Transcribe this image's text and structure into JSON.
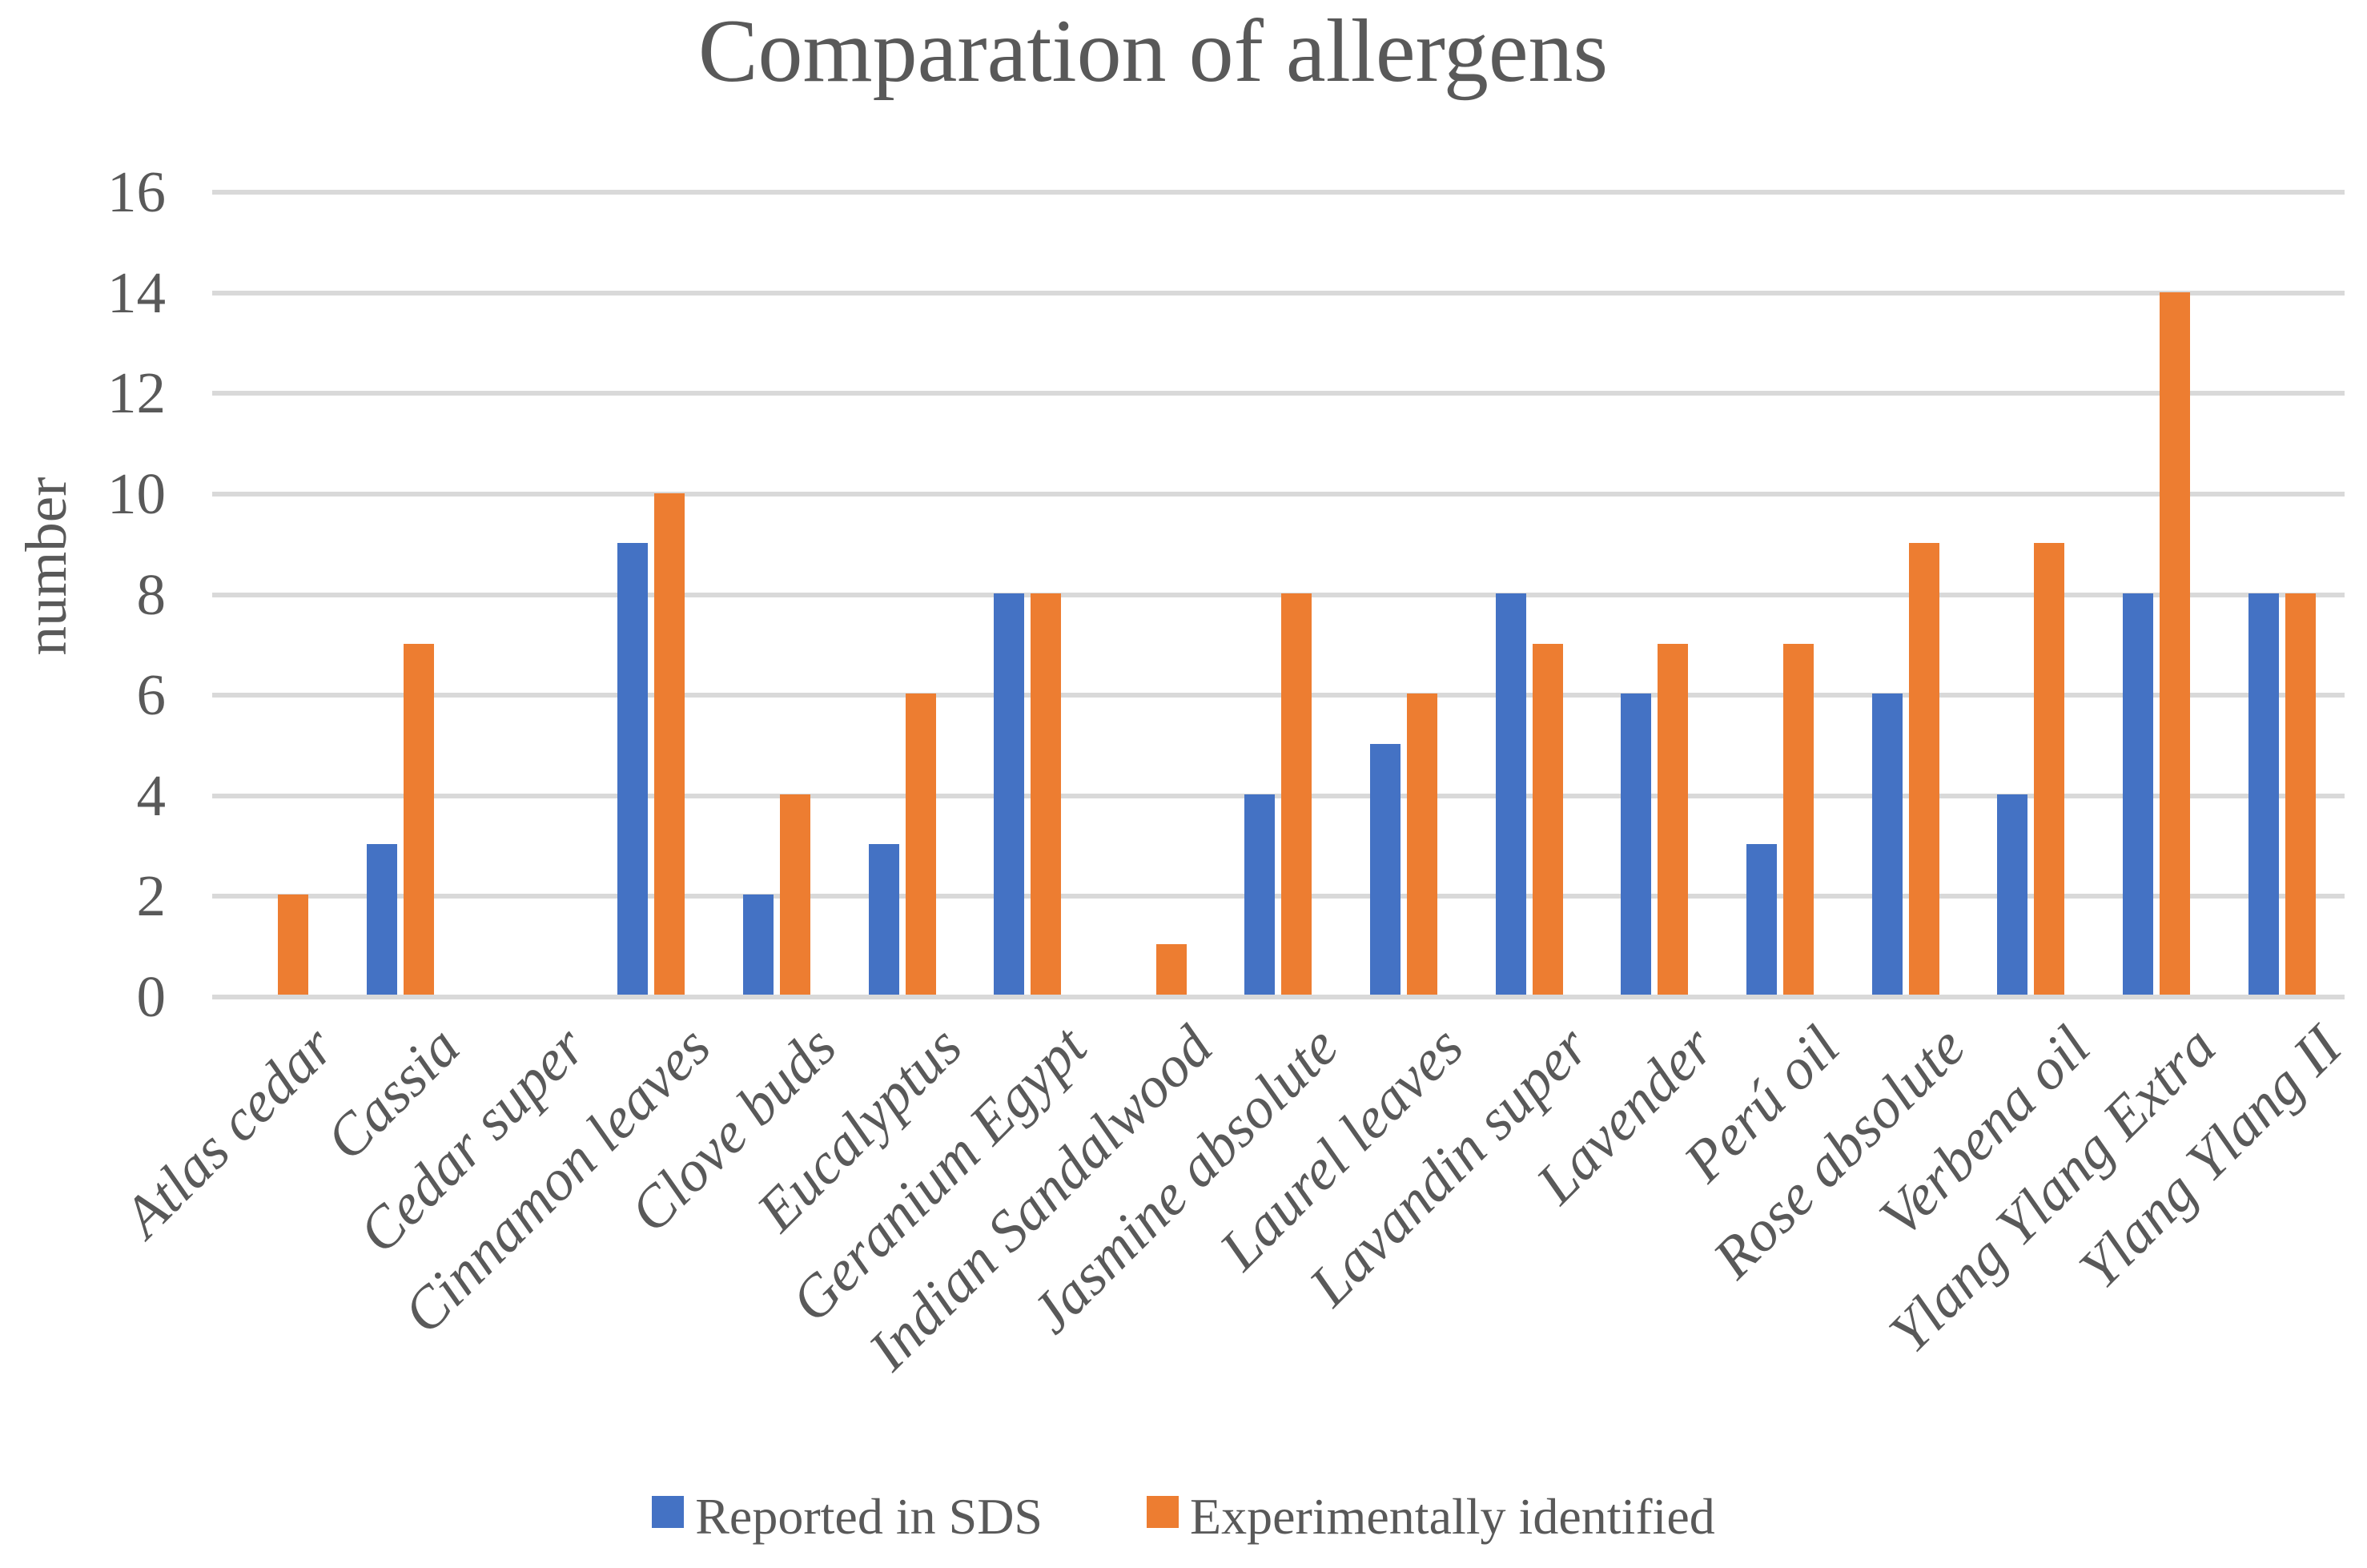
{
  "chart_data": {
    "type": "bar",
    "title": "Comparation of allergens",
    "xlabel": "",
    "ylabel": "number",
    "ylim": [
      0,
      16
    ],
    "yticks": [
      0,
      2,
      4,
      6,
      8,
      10,
      12,
      14,
      16
    ],
    "grid": true,
    "legend_position": "bottom",
    "categories": [
      "Atlas cedar",
      "Cassia",
      "Cedar super",
      "Cinnamon leaves",
      "Clove buds",
      "Eucalyptus",
      "Geranium Egypt",
      "Indian Sandalwood",
      "Jasmine absolute",
      "Laurel leaves",
      "Lavandin super",
      "Lavender",
      "Perú oil",
      "Rose absolute",
      "Verbena oil",
      "Ylang Ylang Extra",
      "Ylang Ylang II"
    ],
    "series": [
      {
        "name": "Reported in SDS",
        "color": "#4472C4",
        "values": [
          0,
          3,
          0,
          9,
          2,
          3,
          8,
          0,
          4,
          5,
          8,
          6,
          3,
          6,
          4,
          8,
          8
        ]
      },
      {
        "name": "Experimentally identified",
        "color": "#ED7D31",
        "values": [
          2,
          7,
          0,
          10,
          4,
          6,
          8,
          1,
          8,
          6,
          7,
          7,
          7,
          9,
          9,
          14,
          8
        ]
      }
    ]
  },
  "colors": {
    "background": "#FFFFFF",
    "gridline": "#D9D9D9",
    "text": "#595959",
    "series_blue": "#4472C4",
    "series_orange": "#ED7D31"
  }
}
